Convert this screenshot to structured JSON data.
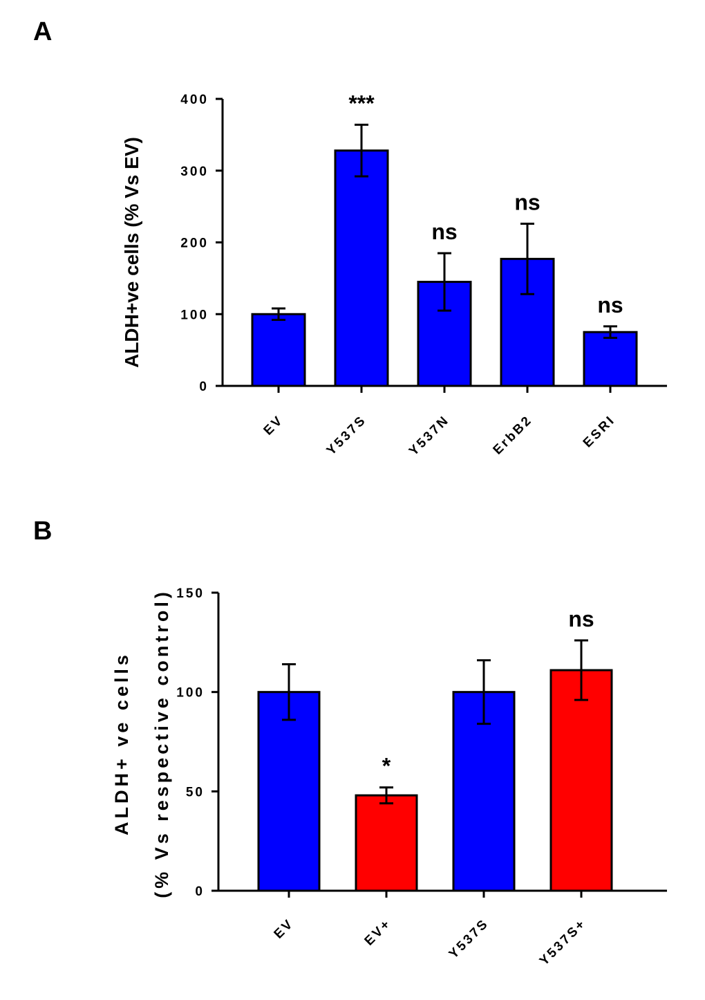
{
  "chart_data": [
    {
      "panel": "A",
      "type": "bar",
      "title": "",
      "xlabel": "",
      "ylabel": "ALDH+ve cells (% Vs EV)",
      "ylim": [
        0,
        400
      ],
      "yticks": [
        0,
        100,
        200,
        300,
        400
      ],
      "categories": [
        "EV",
        "Y537S",
        "Y537N",
        "ErbB2",
        "ESRI"
      ],
      "values": [
        100,
        328,
        145,
        177,
        75
      ],
      "errors": [
        8,
        36,
        40,
        49,
        8
      ],
      "annotations": [
        "",
        "***",
        "ns",
        "ns",
        "ns"
      ],
      "colors": [
        "#0000ff",
        "#0000ff",
        "#0000ff",
        "#0000ff",
        "#0000ff"
      ]
    },
    {
      "panel": "B",
      "type": "bar",
      "title": "",
      "xlabel": "",
      "ylabel": "ALDH+ ve cells",
      "ylabel2": "(% Vs respective control)",
      "ylim": [
        0,
        150
      ],
      "yticks": [
        0,
        50,
        100,
        150
      ],
      "categories": [
        "EV",
        "EV+",
        "Y537S",
        "Y537S+"
      ],
      "values": [
        100,
        48,
        100,
        111
      ],
      "errors": [
        14,
        4,
        16,
        15
      ],
      "annotations": [
        "",
        "*",
        "",
        "ns"
      ],
      "colors": [
        "#0000ff",
        "#ff0000",
        "#0000ff",
        "#ff0000"
      ]
    }
  ]
}
